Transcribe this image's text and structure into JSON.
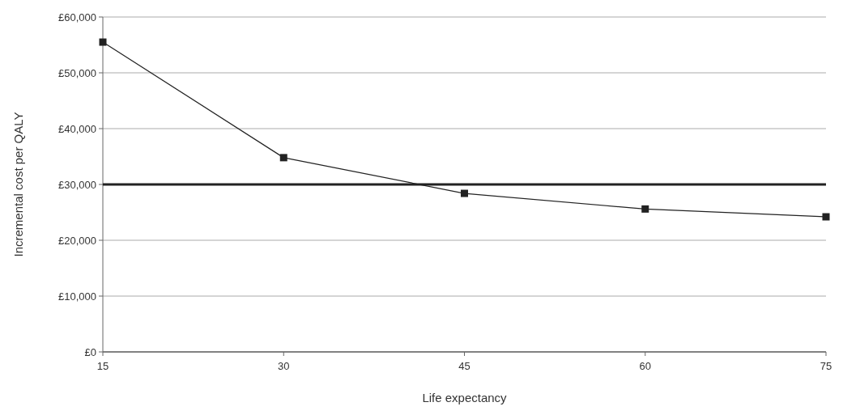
{
  "chart_data": {
    "type": "line",
    "xlabel": "Life expectancy",
    "ylabel": "Incremental cost per QALY",
    "x": [
      15,
      30,
      45,
      60,
      75
    ],
    "series": [
      {
        "color": "#222222",
        "values": [
          55500,
          34800,
          28400,
          25600,
          24200
        ]
      }
    ],
    "xlim": [
      15,
      75
    ],
    "xticks": [
      15,
      30,
      45,
      60,
      75
    ],
    "ylim": [
      0,
      60000
    ],
    "yticks": [
      {
        "value": 0,
        "label": "£0"
      },
      {
        "value": 10000,
        "label": "£10,000"
      },
      {
        "value": 20000,
        "label": "£20,000"
      },
      {
        "value": 30000,
        "label": "£30,000"
      },
      {
        "value": 40000,
        "label": "£40,000"
      },
      {
        "value": 50000,
        "label": "£50,000"
      },
      {
        "value": 60000,
        "label": "£60,000"
      }
    ],
    "grid": "y",
    "marker": "square",
    "line_style": "solid",
    "ref_lines": [
      {
        "axis": "y",
        "value": 30000,
        "color": "#222222"
      }
    ]
  }
}
